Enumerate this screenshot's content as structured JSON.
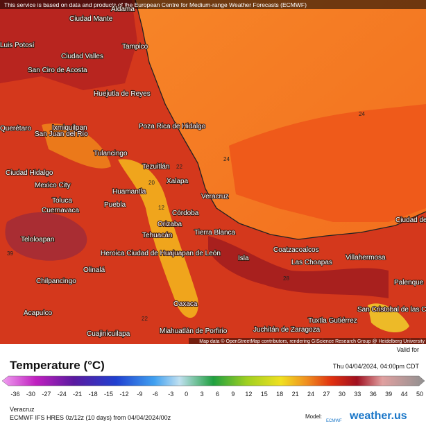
{
  "header": {
    "notice": "This service is based on data and products of the European Centre for Medium-range Weather Forecasts (ECMWF)"
  },
  "map": {
    "labels": [
      "Ciudad Mante",
      "Aldama",
      "Tampico",
      "Luis Potosí",
      "Ciudad Valles",
      "San Ciro de Acosta",
      "Huejutla de Reyes",
      "Poza Rica de Hidalgo",
      "Querétaro",
      "San Juan del Río",
      "Ixmiquilpan",
      "Tulancingo",
      "Tezuitlán",
      "Xalapa",
      "Ciudad Hidalgo",
      "Mexico City",
      "Huamantla",
      "Toluca",
      "Cuernavaca",
      "Puebla",
      "Veracruz",
      "Córdoba",
      "Orizaba",
      "Tehuacán",
      "Tierra Blanca",
      "Teloloapan",
      "Heroica Ciudad de Huajuapan de León",
      "Olinalá",
      "Coatzacoalcos",
      "Las Choapas",
      "Isla",
      "Villahermosa",
      "Ciudad del Carmen",
      "Chilpancingo",
      "Palenque",
      "Oaxaca",
      "San Cristobal de las Casas",
      "Acapulco",
      "Tuxtla Gutiérrez",
      "Juchitán de Zaragoza",
      "Miahuatlán de Porfirio",
      "Cuajinicuilapa"
    ],
    "isotherms": [
      "24",
      "24",
      "22",
      "20",
      "12",
      "39",
      "28",
      "22"
    ],
    "attribution": "Map data © OpenStreetMap contributors, rendering GIScience Research Group @ Heidelberg University"
  },
  "legend": {
    "title": "Temperature (°C)",
    "valid_label": "Valid for",
    "valid_time": "Thu 04/04/2024, 04:00pm CDT",
    "ticks": [
      "-36",
      "-30",
      "-27",
      "-24",
      "-21",
      "-18",
      "-15",
      "-12",
      "-9",
      "-6",
      "-3",
      "0",
      "3",
      "6",
      "9",
      "12",
      "15",
      "18",
      "21",
      "24",
      "27",
      "30",
      "33",
      "36",
      "39",
      "44",
      "50"
    ]
  },
  "footer": {
    "location": "Veracruz",
    "run": "ECMWF IFS HRES 0z/12z (10 days) from 04/04/2024/00z",
    "model_label": "Model:",
    "model": "ECMWF",
    "site": "weather.us"
  }
}
